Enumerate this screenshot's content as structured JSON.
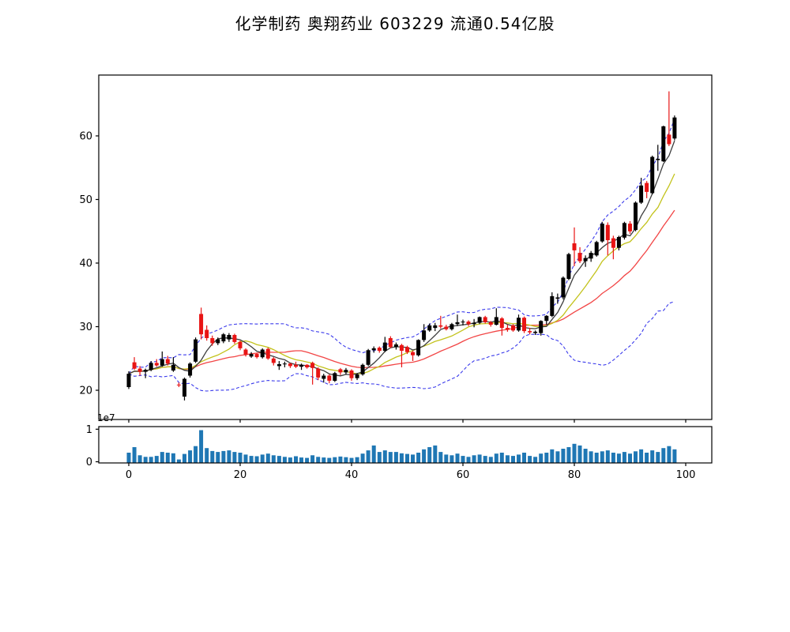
{
  "title": "化学制药  奥翔药业  603229  流通0.54亿股",
  "header": {
    "sector": "化学制药",
    "stock_name": "奥翔药业",
    "stock_code": "603229",
    "float_shares": "流通0.54亿股"
  },
  "chart_data": {
    "type": "candlestick",
    "title": "化学制药  奥翔药业  603229  流通0.54亿股",
    "xlabel": "",
    "ylabel": "",
    "x_ticks": [
      0,
      20,
      40,
      60,
      80,
      100
    ],
    "price_ticks": [
      20,
      30,
      40,
      50,
      60
    ],
    "price_ylim": [
      15.4,
      69.6
    ],
    "x_lim": [
      -5.4,
      104.7
    ],
    "volume_ticks": [
      0,
      1
    ],
    "volume_offset_label": "1e7",
    "volume_ylim_e7": [
      0,
      1.08
    ],
    "grid": false,
    "legend": "none",
    "indicators": {
      "ma_windows": [
        5,
        10,
        20
      ],
      "bollinger_window": 20,
      "bollinger_k": 2
    },
    "colors": {
      "up_candle": "#000000",
      "down_candle": "#e81414",
      "ma5": "#3d3d3d",
      "ma10": "#c3c31c",
      "ma20": "#f24545",
      "bollinger": "#3b3bec",
      "volume_bar": "#1f77b4",
      "frame": "#000000",
      "text": "#000000"
    },
    "ohlcv_note": "each row = [open, high, low, close, volume_in_1e7]",
    "candles": [
      [
        20.5,
        23.0,
        20.2,
        22.6,
        0.28
      ],
      [
        24.4,
        25.2,
        23.2,
        23.4,
        0.45
      ],
      [
        23.4,
        23.8,
        22.3,
        22.9,
        0.2
      ],
      [
        22.9,
        23.4,
        21.9,
        23.2,
        0.15
      ],
      [
        23.2,
        24.6,
        23.0,
        24.3,
        0.15
      ],
      [
        24.3,
        24.9,
        23.7,
        23.9,
        0.18
      ],
      [
        23.9,
        26.1,
        23.7,
        24.9,
        0.3
      ],
      [
        24.9,
        25.4,
        23.9,
        24.2,
        0.28
      ],
      [
        23.1,
        25.2,
        22.9,
        24.0,
        0.26
      ],
      [
        20.9,
        21.2,
        20.5,
        20.8,
        0.07
      ],
      [
        19.0,
        22.0,
        18.4,
        21.8,
        0.24
      ],
      [
        22.3,
        24.4,
        22.0,
        24.2,
        0.35
      ],
      [
        24.5,
        28.3,
        24.3,
        28.0,
        0.48
      ],
      [
        32.0,
        33.0,
        28.0,
        28.8,
        0.97
      ],
      [
        29.5,
        30.2,
        27.8,
        28.2,
        0.42
      ],
      [
        28.2,
        28.6,
        27.0,
        27.4,
        0.33
      ],
      [
        27.4,
        28.3,
        27.1,
        28.0,
        0.3
      ],
      [
        27.7,
        29.0,
        27.4,
        28.8,
        0.33
      ],
      [
        28.0,
        29.0,
        27.6,
        28.7,
        0.35
      ],
      [
        28.7,
        28.9,
        27.3,
        27.6,
        0.3
      ],
      [
        27.6,
        27.8,
        26.3,
        26.6,
        0.28
      ],
      [
        26.4,
        26.6,
        25.3,
        25.6,
        0.22
      ],
      [
        25.3,
        26.0,
        25.1,
        25.7,
        0.18
      ],
      [
        25.7,
        25.9,
        25.0,
        25.2,
        0.17
      ],
      [
        25.2,
        26.6,
        25.0,
        26.4,
        0.22
      ],
      [
        26.5,
        26.7,
        24.8,
        25.0,
        0.25
      ],
      [
        25.0,
        25.2,
        23.9,
        24.3,
        0.2
      ],
      [
        23.8,
        24.6,
        23.2,
        24.1,
        0.18
      ],
      [
        24.1,
        24.5,
        23.6,
        24.2,
        0.15
      ],
      [
        24.2,
        24.3,
        23.5,
        23.8,
        0.13
      ],
      [
        24.0,
        24.5,
        23.5,
        23.7,
        0.17
      ],
      [
        23.7,
        24.2,
        23.2,
        24.0,
        0.13
      ],
      [
        24.0,
        24.1,
        23.4,
        23.6,
        0.12
      ],
      [
        24.3,
        24.5,
        20.9,
        23.5,
        0.2
      ],
      [
        23.4,
        23.6,
        21.6,
        22.0,
        0.15
      ],
      [
        21.8,
        22.6,
        21.2,
        22.3,
        0.13
      ],
      [
        22.3,
        22.5,
        21.1,
        21.5,
        0.12
      ],
      [
        21.5,
        22.9,
        21.3,
        22.7,
        0.14
      ],
      [
        23.3,
        23.5,
        22.4,
        22.8,
        0.16
      ],
      [
        22.8,
        23.5,
        22.5,
        23.2,
        0.14
      ],
      [
        23.1,
        23.3,
        21.5,
        21.9,
        0.12
      ],
      [
        21.9,
        22.7,
        21.6,
        22.5,
        0.14
      ],
      [
        22.5,
        24.2,
        22.3,
        24.0,
        0.25
      ],
      [
        24.0,
        26.5,
        23.8,
        26.3,
        0.35
      ],
      [
        26.3,
        26.9,
        25.9,
        26.6,
        0.5
      ],
      [
        26.7,
        26.9,
        25.9,
        26.2,
        0.3
      ],
      [
        26.2,
        28.4,
        26.0,
        27.5,
        0.35
      ],
      [
        28.2,
        28.5,
        26.6,
        26.8,
        0.3
      ],
      [
        26.8,
        27.5,
        26.4,
        27.2,
        0.3
      ],
      [
        27.1,
        27.3,
        23.6,
        26.2,
        0.26
      ],
      [
        26.8,
        27.0,
        25.7,
        26.0,
        0.24
      ],
      [
        26.0,
        26.2,
        24.6,
        25.5,
        0.22
      ],
      [
        25.5,
        28.0,
        25.3,
        27.9,
        0.28
      ],
      [
        27.9,
        30.4,
        27.6,
        29.4,
        0.38
      ],
      [
        29.4,
        30.5,
        29.2,
        30.2,
        0.45
      ],
      [
        29.8,
        30.6,
        29.3,
        30.2,
        0.5
      ],
      [
        30.2,
        31.7,
        29.7,
        30.0,
        0.3
      ],
      [
        30.0,
        30.3,
        29.4,
        29.6,
        0.22
      ],
      [
        29.6,
        30.6,
        29.4,
        30.4,
        0.2
      ],
      [
        30.4,
        31.9,
        30.1,
        30.7,
        0.25
      ],
      [
        30.7,
        31.1,
        30.2,
        30.8,
        0.18
      ],
      [
        30.8,
        31.0,
        30.1,
        30.4,
        0.15
      ],
      [
        30.4,
        31.2,
        29.9,
        30.6,
        0.2
      ],
      [
        30.6,
        31.6,
        30.4,
        31.5,
        0.22
      ],
      [
        31.5,
        31.7,
        30.5,
        30.7,
        0.18
      ],
      [
        30.7,
        30.9,
        30.0,
        30.3,
        0.15
      ],
      [
        30.3,
        32.9,
        30.2,
        31.5,
        0.25
      ],
      [
        31.3,
        31.5,
        28.6,
        29.8,
        0.28
      ],
      [
        29.8,
        30.3,
        29.2,
        29.5,
        0.2
      ],
      [
        30.2,
        30.4,
        29.2,
        29.4,
        0.18
      ],
      [
        29.4,
        31.9,
        29.2,
        31.4,
        0.22
      ],
      [
        31.4,
        31.6,
        29.0,
        29.3,
        0.28
      ],
      [
        29.3,
        29.8,
        28.8,
        29.1,
        0.18
      ],
      [
        29.0,
        29.4,
        28.7,
        29.2,
        0.15
      ],
      [
        29.0,
        31.0,
        28.6,
        30.9,
        0.25
      ],
      [
        30.9,
        31.8,
        30.3,
        31.7,
        0.28
      ],
      [
        31.7,
        35.4,
        31.5,
        34.8,
        0.38
      ],
      [
        34.4,
        35.2,
        33.6,
        34.6,
        0.32
      ],
      [
        34.6,
        37.9,
        34.3,
        37.7,
        0.4
      ],
      [
        37.5,
        41.6,
        37.3,
        41.4,
        0.45
      ],
      [
        43.1,
        45.6,
        39.5,
        42.0,
        0.55
      ],
      [
        41.6,
        42.5,
        40.0,
        40.3,
        0.5
      ],
      [
        40.3,
        41.2,
        39.4,
        40.8,
        0.4
      ],
      [
        40.7,
        41.9,
        40.2,
        41.6,
        0.32
      ],
      [
        41.2,
        43.5,
        41.0,
        43.3,
        0.28
      ],
      [
        43.4,
        46.5,
        43.2,
        46.2,
        0.32
      ],
      [
        46.0,
        46.4,
        41.2,
        43.6,
        0.35
      ],
      [
        43.9,
        44.3,
        40.6,
        42.4,
        0.28
      ],
      [
        42.4,
        44.3,
        42.0,
        44.1,
        0.25
      ],
      [
        44.0,
        46.5,
        43.7,
        46.3,
        0.3
      ],
      [
        46.2,
        46.6,
        44.6,
        45.0,
        0.25
      ],
      [
        45.2,
        49.7,
        45.0,
        49.5,
        0.32
      ],
      [
        49.5,
        53.4,
        49.3,
        52.2,
        0.38
      ],
      [
        52.6,
        52.9,
        50.2,
        51.2,
        0.28
      ],
      [
        51.0,
        56.9,
        50.8,
        56.7,
        0.35
      ],
      [
        56.2,
        58.6,
        54.5,
        56.4,
        0.3
      ],
      [
        56.0,
        61.6,
        55.9,
        61.5,
        0.42
      ],
      [
        60.2,
        67.0,
        58.4,
        58.7,
        0.48
      ],
      [
        59.6,
        63.2,
        59.3,
        62.9,
        0.38
      ]
    ]
  }
}
